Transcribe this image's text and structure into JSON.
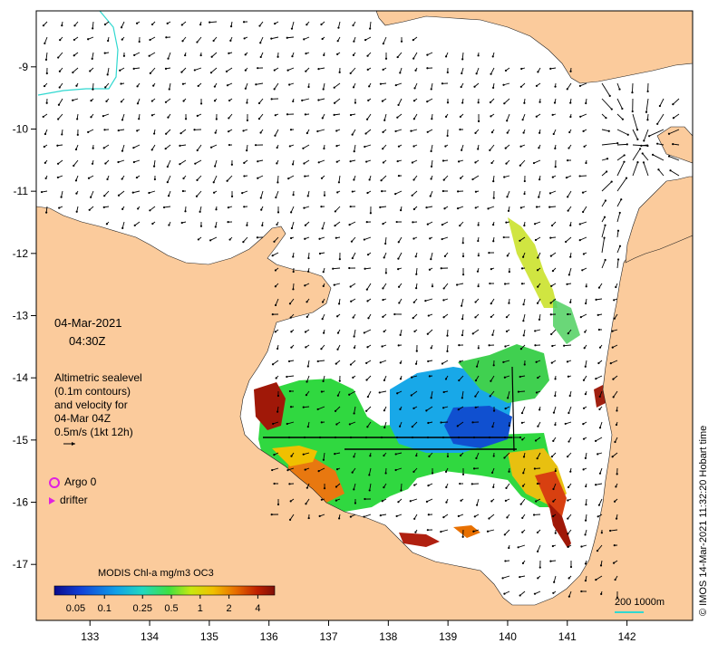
{
  "map": {
    "date": "04-Mar-2021",
    "time": "04:30Z",
    "info_lines": [
      "Altimetric sealevel",
      "(0.1m contours)",
      "and velocity for",
      "04-Mar 04Z",
      "0.5m/s (1kt 12h)"
    ],
    "legend": {
      "argo_label": "Argo 0",
      "drifter_label": "drifter"
    },
    "colorbar": {
      "title": "MODIS Chl-a mg/m3 OC3",
      "tick_labels": [
        "0.05",
        "0.1",
        "0.25",
        "0.5",
        "1",
        "2",
        "4"
      ],
      "tick_values": [
        0.05,
        0.1,
        0.25,
        0.5,
        1,
        2,
        4
      ],
      "range": [
        0.03,
        6
      ],
      "scale": "log",
      "colormap": [
        "#0a0a8c",
        "#1040d8",
        "#10a0e8",
        "#20d8c0",
        "#40e040",
        "#c8e810",
        "#f0c000",
        "#e87000",
        "#c02000",
        "#801008"
      ]
    },
    "scale_bar": "200  1000m",
    "credit": "© IMOS 14-Mar-2021 11:32:20 Hobart time",
    "x_axis": {
      "ticks": [
        133,
        134,
        135,
        136,
        137,
        138,
        139,
        140,
        141,
        142
      ],
      "range": [
        132.1,
        143.1
      ]
    },
    "y_axis": {
      "ticks": [
        -9,
        -10,
        -11,
        -12,
        -13,
        -14,
        -15,
        -16,
        -17
      ],
      "range": [
        -17.9,
        -8.1
      ]
    },
    "colors": {
      "land": "#fbcb9c",
      "sea": "#ffffff",
      "arrows": "#000000",
      "symbol": "#e020e0",
      "contour": "#30d8d0"
    }
  }
}
